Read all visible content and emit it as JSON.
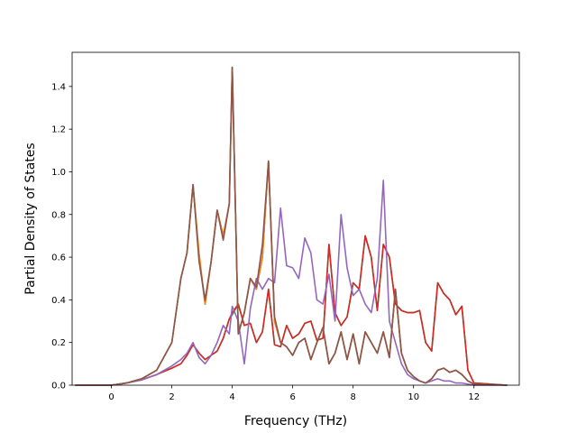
{
  "chart_data": {
    "type": "line",
    "title": "",
    "xlabel": "Frequency (THz)",
    "ylabel": "Partial Density of States",
    "xlim": [
      -1.3,
      13.5
    ],
    "ylim": [
      0.0,
      1.56
    ],
    "xticks": [
      0,
      2,
      4,
      6,
      8,
      10,
      12
    ],
    "yticks": [
      0.0,
      0.2,
      0.4,
      0.6,
      0.8,
      1.0,
      1.2,
      1.4
    ],
    "xtick_labels": [
      "0",
      "2",
      "4",
      "6",
      "8",
      "10",
      "12"
    ],
    "ytick_labels": [
      "0.0",
      "0.2",
      "0.4",
      "0.6",
      "0.8",
      "1.0",
      "1.2",
      "1.4"
    ],
    "grid": false,
    "legend": "none",
    "series": [
      {
        "color": "#2ca02c",
        "x": [
          -1.2,
          0.0,
          0.5,
          1.0,
          1.5,
          2.0,
          2.3,
          2.5,
          2.7,
          2.9,
          3.1,
          3.3,
          3.5,
          3.7,
          3.9,
          4.0,
          4.2,
          4.4,
          4.6,
          4.8,
          5.0,
          5.2,
          5.4,
          5.6,
          5.8,
          6.0,
          6.2,
          6.4,
          6.6,
          6.8,
          7.0,
          7.2,
          7.4,
          7.6,
          7.8,
          8.0,
          8.2,
          8.4,
          8.6,
          8.8,
          9.0,
          9.2,
          9.4,
          9.6,
          9.8,
          10.0,
          10.2,
          10.4,
          10.6,
          10.8,
          11.0,
          11.2,
          11.4,
          11.6,
          11.8,
          12.0,
          13.1
        ],
        "y": [
          0.0,
          0.0,
          0.01,
          0.025,
          0.05,
          0.08,
          0.1,
          0.14,
          0.19,
          0.15,
          0.12,
          0.14,
          0.16,
          0.22,
          0.31,
          0.33,
          0.38,
          0.28,
          0.29,
          0.2,
          0.25,
          0.45,
          0.19,
          0.18,
          0.28,
          0.22,
          0.24,
          0.29,
          0.3,
          0.21,
          0.22,
          0.66,
          0.34,
          0.28,
          0.32,
          0.48,
          0.45,
          0.7,
          0.6,
          0.35,
          0.66,
          0.6,
          0.38,
          0.35,
          0.34,
          0.34,
          0.35,
          0.2,
          0.16,
          0.48,
          0.43,
          0.4,
          0.33,
          0.37,
          0.07,
          0.01,
          0.0
        ]
      },
      {
        "color": "#d62728",
        "x": [
          -1.2,
          0.0,
          0.5,
          1.0,
          1.5,
          2.0,
          2.3,
          2.5,
          2.7,
          2.9,
          3.1,
          3.3,
          3.5,
          3.7,
          3.9,
          4.0,
          4.2,
          4.4,
          4.6,
          4.8,
          5.0,
          5.2,
          5.4,
          5.6,
          5.8,
          6.0,
          6.2,
          6.4,
          6.6,
          6.8,
          7.0,
          7.2,
          7.4,
          7.6,
          7.8,
          8.0,
          8.2,
          8.4,
          8.6,
          8.8,
          9.0,
          9.2,
          9.4,
          9.6,
          9.8,
          10.0,
          10.2,
          10.4,
          10.6,
          10.8,
          11.0,
          11.2,
          11.4,
          11.6,
          11.8,
          12.0,
          13.1
        ],
        "y": [
          0.0,
          0.0,
          0.01,
          0.025,
          0.05,
          0.08,
          0.1,
          0.14,
          0.19,
          0.15,
          0.12,
          0.14,
          0.16,
          0.22,
          0.31,
          0.34,
          0.38,
          0.28,
          0.29,
          0.2,
          0.25,
          0.45,
          0.19,
          0.18,
          0.28,
          0.22,
          0.24,
          0.29,
          0.3,
          0.21,
          0.22,
          0.66,
          0.34,
          0.28,
          0.32,
          0.48,
          0.45,
          0.7,
          0.6,
          0.35,
          0.66,
          0.6,
          0.38,
          0.35,
          0.34,
          0.34,
          0.35,
          0.2,
          0.16,
          0.48,
          0.43,
          0.4,
          0.33,
          0.37,
          0.07,
          0.01,
          0.0
        ]
      },
      {
        "color": "#1f77b4",
        "x": [
          -1.2,
          0.0,
          0.5,
          1.0,
          1.5,
          2.0,
          2.3,
          2.5,
          2.7,
          2.9,
          3.1,
          3.3,
          3.5,
          3.7,
          3.9,
          4.0,
          4.2,
          4.4,
          4.6,
          4.8,
          5.0,
          5.2,
          5.4,
          5.6,
          5.8,
          6.0,
          6.2,
          6.4,
          6.6,
          6.8,
          7.0,
          7.2,
          7.4,
          7.6,
          7.8,
          8.0,
          8.2,
          8.4,
          8.6,
          8.8,
          9.0,
          9.2,
          9.4,
          9.6,
          9.8,
          10.0,
          10.2,
          10.4,
          10.6,
          10.8,
          11.0,
          11.2,
          11.4,
          11.6,
          11.8,
          12.0,
          13.1
        ],
        "y": [
          0.0,
          0.0,
          0.01,
          0.03,
          0.07,
          0.2,
          0.5,
          0.62,
          0.94,
          0.6,
          0.38,
          0.58,
          0.82,
          0.7,
          0.85,
          1.49,
          0.24,
          0.34,
          0.5,
          0.45,
          0.6,
          1.05,
          0.3,
          0.2,
          0.18,
          0.14,
          0.2,
          0.22,
          0.12,
          0.2,
          0.27,
          0.1,
          0.15,
          0.25,
          0.12,
          0.24,
          0.1,
          0.25,
          0.2,
          0.15,
          0.25,
          0.13,
          0.45,
          0.15,
          0.07,
          0.04,
          0.02,
          0.01,
          0.03,
          0.07,
          0.08,
          0.06,
          0.07,
          0.05,
          0.02,
          0.005,
          0.0
        ]
      },
      {
        "color": "#ff7f0e",
        "x": [
          -1.2,
          0.0,
          0.5,
          1.0,
          1.5,
          2.0,
          2.3,
          2.5,
          2.7,
          2.9,
          3.1,
          3.3,
          3.5,
          3.7,
          3.9,
          4.0,
          4.2,
          4.4,
          4.6,
          4.8,
          5.0,
          5.2,
          5.4,
          5.6,
          5.8,
          6.0,
          6.2,
          6.4,
          6.6,
          6.8,
          7.0,
          7.2,
          7.4,
          7.6,
          7.8,
          8.0,
          8.2,
          8.4,
          8.6,
          8.8,
          9.0,
          9.2,
          9.4,
          9.6,
          9.8,
          10.0,
          10.2,
          10.4,
          10.6,
          10.8,
          11.0,
          11.2,
          11.4,
          11.6,
          11.8,
          12.0,
          13.1
        ],
        "y": [
          0.0,
          0.0,
          0.01,
          0.03,
          0.07,
          0.2,
          0.5,
          0.62,
          0.94,
          0.62,
          0.38,
          0.58,
          0.82,
          0.7,
          0.85,
          1.49,
          0.24,
          0.34,
          0.5,
          0.45,
          0.6,
          1.05,
          0.3,
          0.2,
          0.18,
          0.14,
          0.2,
          0.22,
          0.12,
          0.2,
          0.27,
          0.1,
          0.15,
          0.25,
          0.12,
          0.24,
          0.1,
          0.25,
          0.2,
          0.15,
          0.25,
          0.13,
          0.45,
          0.15,
          0.07,
          0.04,
          0.02,
          0.01,
          0.03,
          0.07,
          0.08,
          0.06,
          0.07,
          0.05,
          0.02,
          0.005,
          0.0
        ]
      },
      {
        "color": "#9467bd",
        "x": [
          -1.2,
          0.0,
          0.5,
          1.0,
          1.5,
          2.0,
          2.3,
          2.5,
          2.7,
          2.9,
          3.1,
          3.3,
          3.5,
          3.7,
          3.9,
          4.0,
          4.2,
          4.4,
          4.6,
          4.8,
          5.0,
          5.2,
          5.4,
          5.6,
          5.8,
          6.0,
          6.2,
          6.4,
          6.6,
          6.8,
          7.0,
          7.2,
          7.4,
          7.6,
          7.8,
          8.0,
          8.2,
          8.4,
          8.6,
          8.8,
          9.0,
          9.2,
          9.4,
          9.6,
          9.8,
          10.0,
          10.2,
          10.4,
          10.6,
          10.8,
          11.0,
          11.2,
          11.4,
          11.6,
          11.8,
          12.0,
          13.1
        ],
        "y": [
          0.0,
          0.0,
          0.01,
          0.025,
          0.05,
          0.09,
          0.12,
          0.15,
          0.2,
          0.13,
          0.1,
          0.14,
          0.2,
          0.28,
          0.24,
          0.37,
          0.3,
          0.1,
          0.36,
          0.5,
          0.45,
          0.5,
          0.48,
          0.83,
          0.56,
          0.55,
          0.5,
          0.69,
          0.62,
          0.4,
          0.38,
          0.52,
          0.3,
          0.8,
          0.55,
          0.42,
          0.45,
          0.38,
          0.34,
          0.5,
          0.96,
          0.3,
          0.2,
          0.1,
          0.05,
          0.03,
          0.02,
          0.01,
          0.02,
          0.03,
          0.02,
          0.02,
          0.01,
          0.01,
          0.005,
          0.0,
          0.0
        ]
      },
      {
        "color": "#8c564b",
        "x": [
          -1.2,
          0.0,
          0.5,
          1.0,
          1.5,
          2.0,
          2.3,
          2.5,
          2.7,
          2.9,
          3.1,
          3.3,
          3.5,
          3.7,
          3.9,
          4.0,
          4.2,
          4.4,
          4.6,
          4.8,
          5.0,
          5.2,
          5.4,
          5.6,
          5.8,
          6.0,
          6.2,
          6.4,
          6.6,
          6.8,
          7.0,
          7.2,
          7.4,
          7.6,
          7.8,
          8.0,
          8.2,
          8.4,
          8.6,
          8.8,
          9.0,
          9.2,
          9.4,
          9.6,
          9.8,
          10.0,
          10.2,
          10.4,
          10.6,
          10.8,
          11.0,
          11.2,
          11.4,
          11.6,
          11.8,
          12.0,
          13.1
        ],
        "y": [
          0.0,
          0.0,
          0.01,
          0.03,
          0.07,
          0.2,
          0.5,
          0.62,
          0.94,
          0.58,
          0.4,
          0.58,
          0.82,
          0.68,
          0.85,
          1.49,
          0.24,
          0.34,
          0.5,
          0.46,
          0.66,
          1.05,
          0.32,
          0.2,
          0.18,
          0.14,
          0.2,
          0.22,
          0.12,
          0.2,
          0.27,
          0.1,
          0.15,
          0.25,
          0.12,
          0.24,
          0.1,
          0.25,
          0.2,
          0.15,
          0.25,
          0.13,
          0.45,
          0.15,
          0.07,
          0.04,
          0.02,
          0.01,
          0.03,
          0.07,
          0.08,
          0.06,
          0.07,
          0.05,
          0.02,
          0.005,
          0.0
        ]
      }
    ]
  }
}
